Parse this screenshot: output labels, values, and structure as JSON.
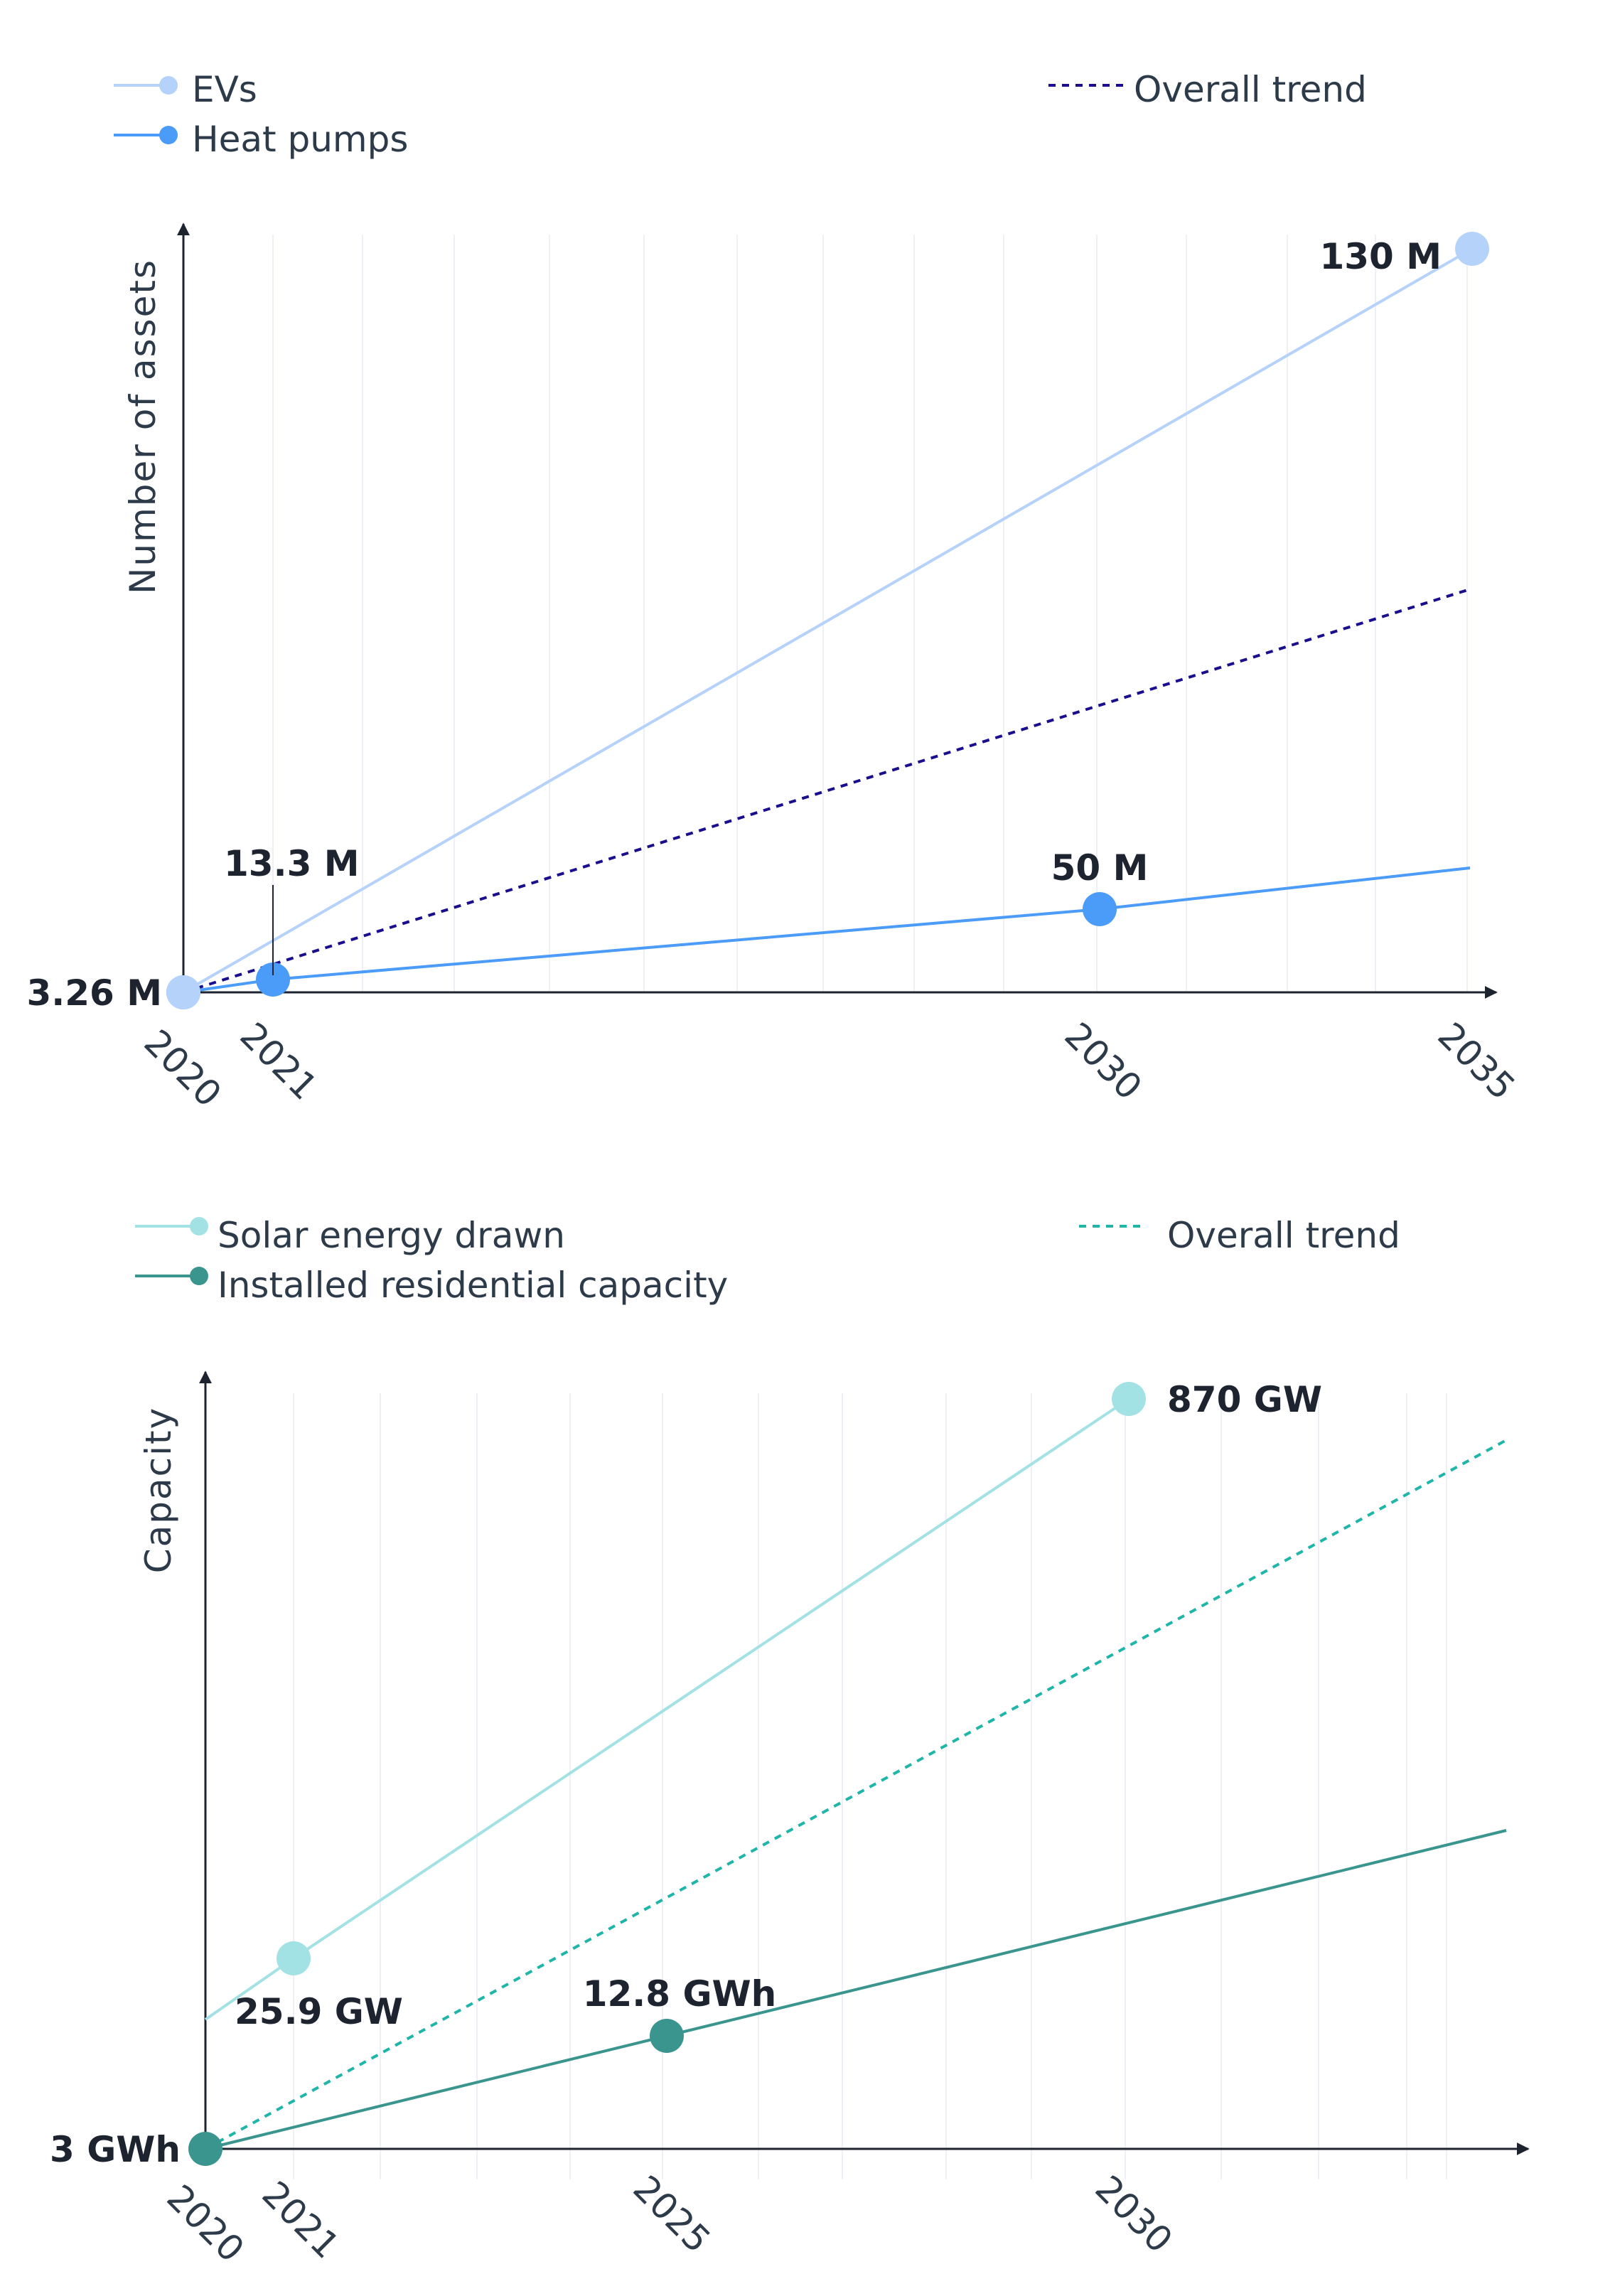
{
  "chart_data": [
    {
      "type": "line",
      "ylabel": "Number of assets",
      "xlabel": "",
      "x_ticks": [
        "2020",
        "2021",
        "2030",
        "2035"
      ],
      "grid": "vertical",
      "legend": "top",
      "series": [
        {
          "name": "EVs",
          "color": "#b5d2fb",
          "points": [
            {
              "x": 2020,
              "y": 3.26,
              "label": "3.26 M"
            },
            {
              "x": 2035,
              "y": 130,
              "label": "130 M"
            }
          ]
        },
        {
          "name": "Heat pumps",
          "color": "#4b9bf8",
          "points": [
            {
              "x": 2020,
              "y": 3.26
            },
            {
              "x": 2021,
              "y": 13.3,
              "label": "13.3 M"
            },
            {
              "x": 2030,
              "y": 50,
              "label": "50 M"
            }
          ]
        },
        {
          "name": "Overall trend",
          "color": "#1a0e8e",
          "style": "dashed"
        }
      ]
    },
    {
      "type": "line",
      "ylabel": "Capacity",
      "xlabel": "",
      "x_ticks": [
        "2020",
        "2021",
        "2025",
        "2030"
      ],
      "grid": "vertical",
      "legend": "top",
      "series": [
        {
          "name": "Solar energy drawn",
          "color": "#a3e2e4",
          "points": [
            {
              "x": 2021,
              "y": 25.9,
              "label": "25.9 GW"
            },
            {
              "x": 2030,
              "y": 870,
              "label": "870 GW"
            }
          ]
        },
        {
          "name": "Installed residential capacity",
          "color": "#3a958f",
          "points": [
            {
              "x": 2020,
              "y": 3,
              "label": "3 GWh"
            },
            {
              "x": 2025,
              "y": 12.8,
              "label": "12.8 GWh"
            }
          ]
        },
        {
          "name": "Overall trend",
          "color": "#1fb5a9",
          "style": "dashed"
        }
      ]
    }
  ]
}
